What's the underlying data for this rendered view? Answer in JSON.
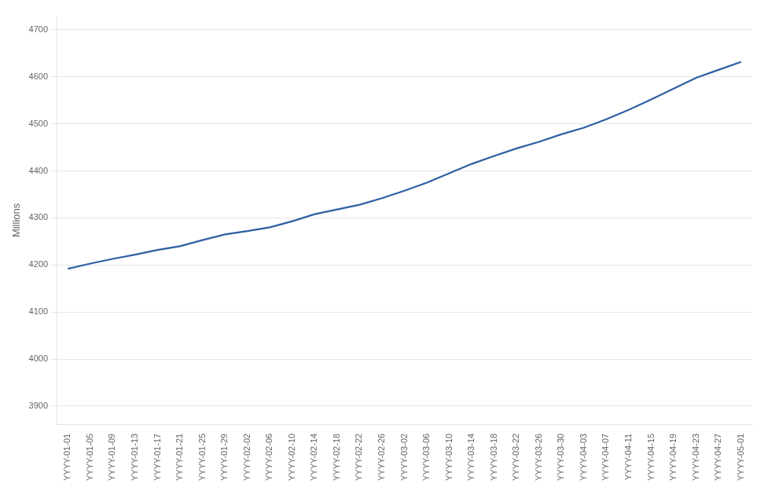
{
  "chart_data": {
    "type": "line",
    "y_label": "Millions",
    "categories": [
      "YYYY-01-01",
      "YYYY-01-05",
      "YYYY-01-09",
      "YYYY-01-13",
      "YYYY-01-17",
      "YYYY-01-21",
      "YYYY-01-25",
      "YYYY-01-29",
      "YYYY-02-02",
      "YYYY-02-06",
      "YYYY-02-10",
      "YYYY-02-14",
      "YYYY-02-18",
      "YYYY-02-22",
      "YYYY-02-26",
      "YYYY-03-02",
      "YYYY-03-06",
      "YYYY-03-10",
      "YYYY-03-14",
      "YYYY-03-18",
      "YYYY-03-22",
      "YYYY-03-26",
      "YYYY-03-30",
      "YYYY-04-03",
      "YYYY-04-07",
      "YYYY-04-11",
      "YYYY-04-15",
      "YYYY-04-19",
      "YYYY-04-23",
      "YYYY-04-27",
      "YYYY-05-01"
    ],
    "values": [
      4192,
      4203,
      4213,
      4222,
      4232,
      4240,
      4253,
      4265,
      4272,
      4280,
      4293,
      4308,
      4318,
      4328,
      4342,
      4358,
      4375,
      4395,
      4415,
      4432,
      4448,
      4462,
      4478,
      4492,
      4510,
      4530,
      4552,
      4575,
      4598,
      4615,
      4632
    ],
    "color": "#2e5fa3",
    "ylim": [
      3860,
      4730
    ],
    "yticks": [
      3900,
      4000,
      4100,
      4200,
      4300,
      4400,
      4500,
      4600,
      4700
    ],
    "grid": "y"
  }
}
